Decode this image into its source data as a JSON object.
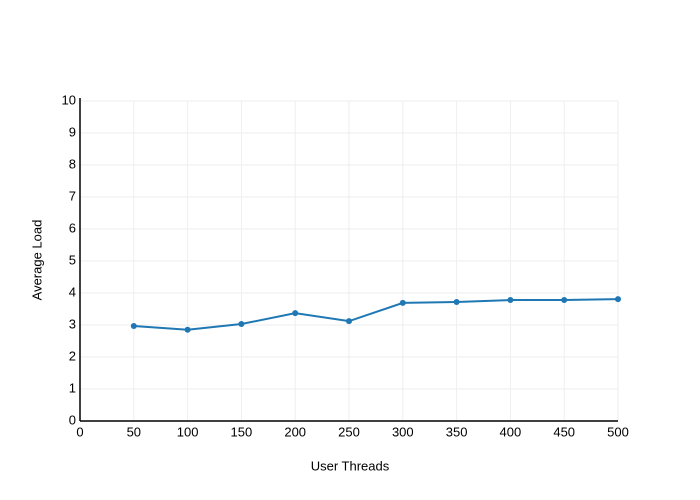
{
  "chart_data": {
    "type": "line",
    "x_label": "User Threads",
    "y_label": "Average Load",
    "x": [
      50,
      100,
      150,
      200,
      250,
      300,
      350,
      400,
      450,
      500
    ],
    "series": [
      {
        "color": "#1f77b4",
        "values": [
          2.97,
          2.85,
          3.03,
          3.37,
          3.12,
          3.69,
          3.72,
          3.78,
          3.78,
          3.81
        ]
      }
    ],
    "xlim": [
      0,
      500
    ],
    "xticks": [
      0,
      50,
      100,
      150,
      200,
      250,
      300,
      350,
      400,
      450,
      500
    ],
    "ylim": [
      0,
      10
    ],
    "yticks": [
      0,
      1,
      2,
      3,
      4,
      5,
      6,
      7,
      8,
      9,
      10
    ],
    "grid": true
  }
}
